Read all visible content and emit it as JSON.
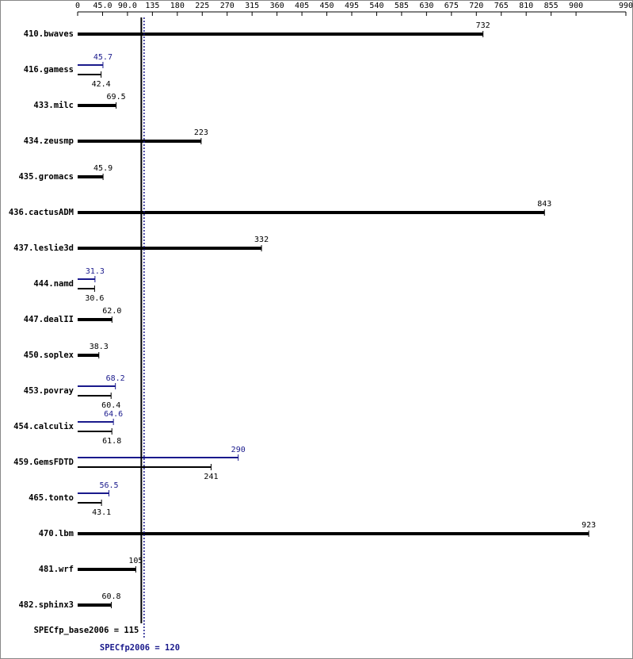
{
  "chart_data": {
    "type": "spec-bar",
    "xlim": [
      0,
      990
    ],
    "xticks": [
      0,
      {
        "value": 45,
        "label": "45.0"
      },
      {
        "value": 90,
        "label": "90.0"
      },
      135,
      180,
      225,
      270,
      315,
      360,
      405,
      450,
      495,
      540,
      585,
      630,
      675,
      720,
      765,
      810,
      855,
      900,
      990
    ],
    "base_color": "#000000",
    "peak_color": "#1a1a8c",
    "benchmarks": [
      {
        "name": "410.bwaves",
        "base": 732
      },
      {
        "name": "416.gamess",
        "peak": 45.7,
        "base": 42.4
      },
      {
        "name": "433.milc",
        "base": 69.5
      },
      {
        "name": "434.zeusmp",
        "base": 223
      },
      {
        "name": "435.gromacs",
        "base": 45.9
      },
      {
        "name": "436.cactusADM",
        "base": 843
      },
      {
        "name": "437.leslie3d",
        "base": 332
      },
      {
        "name": "444.namd",
        "peak": 31.3,
        "base": 30.6
      },
      {
        "name": "447.dealII",
        "base": 62,
        "base_label": "62.0"
      },
      {
        "name": "450.soplex",
        "base": 38.3
      },
      {
        "name": "453.povray",
        "peak": 68.2,
        "base": 60.4
      },
      {
        "name": "454.calculix",
        "peak": 64.6,
        "base": 61.8
      },
      {
        "name": "459.GemsFDTD",
        "peak": 290,
        "base": 241
      },
      {
        "name": "465.tonto",
        "peak": 56.5,
        "base": 43.1
      },
      {
        "name": "470.lbm",
        "base": 923
      },
      {
        "name": "481.wrf",
        "base": 105
      },
      {
        "name": "482.sphinx3",
        "base": 60.8
      }
    ],
    "base_reference": {
      "label": "SPECfp_base2006 = 115",
      "value": 115
    },
    "peak_reference": {
      "label": "SPECfp2006 = 120",
      "value": 120
    }
  }
}
